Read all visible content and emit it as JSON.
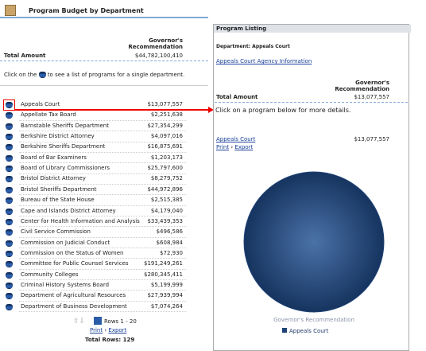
{
  "header": {
    "title": "Program Budget by Department"
  },
  "summary": {
    "column_header": "Governor's Recommendation",
    "row_label": "Total Amount",
    "total": "$44,782,100,410"
  },
  "instruction": {
    "before": "Click on the",
    "after": "to see a list of programs for a single department."
  },
  "table": {
    "rows": [
      [
        "Appeals Court",
        "$13,077,557"
      ],
      [
        "Appellate Tax Board",
        "$2,251,638"
      ],
      [
        "Barnstable Sheriffs Department",
        "$27,354,299"
      ],
      [
        "Berkshire District Attorney",
        "$4,097,016"
      ],
      [
        "Berkshire Sheriffs Department",
        "$16,875,691"
      ],
      [
        "Board of Bar Examiners",
        "$1,203,173"
      ],
      [
        "Board of Library Commissioners",
        "$25,797,600"
      ],
      [
        "Bristol District Attorney",
        "$8,279,752"
      ],
      [
        "Bristol Sheriffs Department",
        "$44,972,896"
      ],
      [
        "Bureau of the State House",
        "$2,515,385"
      ],
      [
        "Cape and Islands District Attorney",
        "$4,179,040"
      ],
      [
        "Center for Health Information and Analysis",
        "$33,439,353"
      ],
      [
        "Civil Service Commission",
        "$496,586"
      ],
      [
        "Commission on Judicial Conduct",
        "$608,984"
      ],
      [
        "Commission on the Status of Women",
        "$72,930"
      ],
      [
        "Committee for Public Counsel Services",
        "$191,249,261"
      ],
      [
        "Community Colleges",
        "$280,345,411"
      ],
      [
        "Criminal History Systems Board",
        "$5,199,999"
      ],
      [
        "Department of Agricultural Resources",
        "$27,939,994"
      ],
      [
        "Department of Business Development",
        "$7,074,264"
      ]
    ]
  },
  "pager": {
    "rows_label": "Rows 1 - 20",
    "print": "Print",
    "separator": "›",
    "export": "Export",
    "total_rows": "Total Rows: 129"
  },
  "listing": {
    "title": "Program Listing",
    "department": "Department: Appeals Court",
    "link": "Appeals Court Agency Information",
    "column_header": "Governor's Recommendation",
    "row_label": "Total Amount",
    "total": "$13,077,557",
    "instruction": "Click on a program below for more details.",
    "program": {
      "name": "Appeals Court",
      "amount": "$13,077,557"
    },
    "print": "Print",
    "separator": "›",
    "export": "Export"
  },
  "chart_data": {
    "type": "pie",
    "title": "Governor's Recommendation",
    "categories": [
      "Appeals Court"
    ],
    "values": [
      13077557
    ],
    "colors": [
      "#1f4377"
    ]
  }
}
